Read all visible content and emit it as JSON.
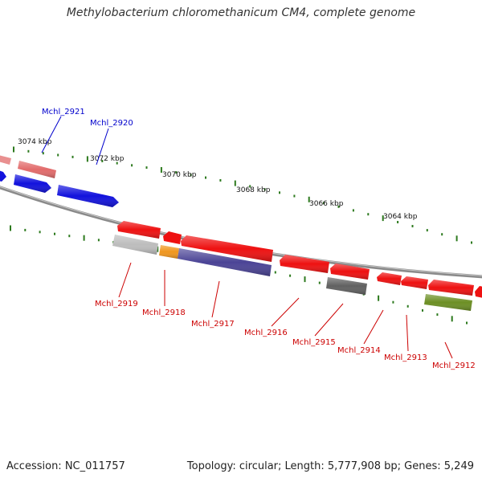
{
  "title": "Methylobacterium chloromethanicum CM4, complete genome",
  "footer": {
    "accession": "Accession: NC_011757",
    "topology": "Topology: circular; Length: 5,777,908 bp; Genes: 5,249"
  },
  "colors": {
    "backbone": "#8a8a8a",
    "forward_label": "#0000cc",
    "reverse_label": "#cc0000",
    "tick": "#2d7a1e"
  },
  "scale_labels": [
    "3074 kbp",
    "3072 kbp",
    "3070 kbp",
    "3068 kbp",
    "3066 kbp",
    "3064 kbp"
  ],
  "genes": [
    {
      "id": "Mchl_2921",
      "strand": "forward",
      "color": "#e26b6b"
    },
    {
      "id": "Mchl_2920",
      "strand": "forward",
      "color": "#1212dd"
    },
    {
      "id": "Mchl_2919",
      "strand": "reverse",
      "color": "#bdbdbd"
    },
    {
      "id": "Mchl_2918",
      "strand": "reverse",
      "color": "#f0961e"
    },
    {
      "id": "Mchl_2917",
      "strand": "reverse",
      "color": "#4b4496"
    },
    {
      "id": "Mchl_2916",
      "strand": "reverse",
      "color": "#ee1111"
    },
    {
      "id": "Mchl_2915",
      "strand": "reverse",
      "color": "#616161"
    },
    {
      "id": "Mchl_2914",
      "strand": "reverse",
      "color": "#ee1111"
    },
    {
      "id": "Mchl_2913",
      "strand": "reverse",
      "color": "#ee1111"
    },
    {
      "id": "Mchl_2912",
      "strand": "reverse",
      "color": "#6c8f24"
    }
  ]
}
